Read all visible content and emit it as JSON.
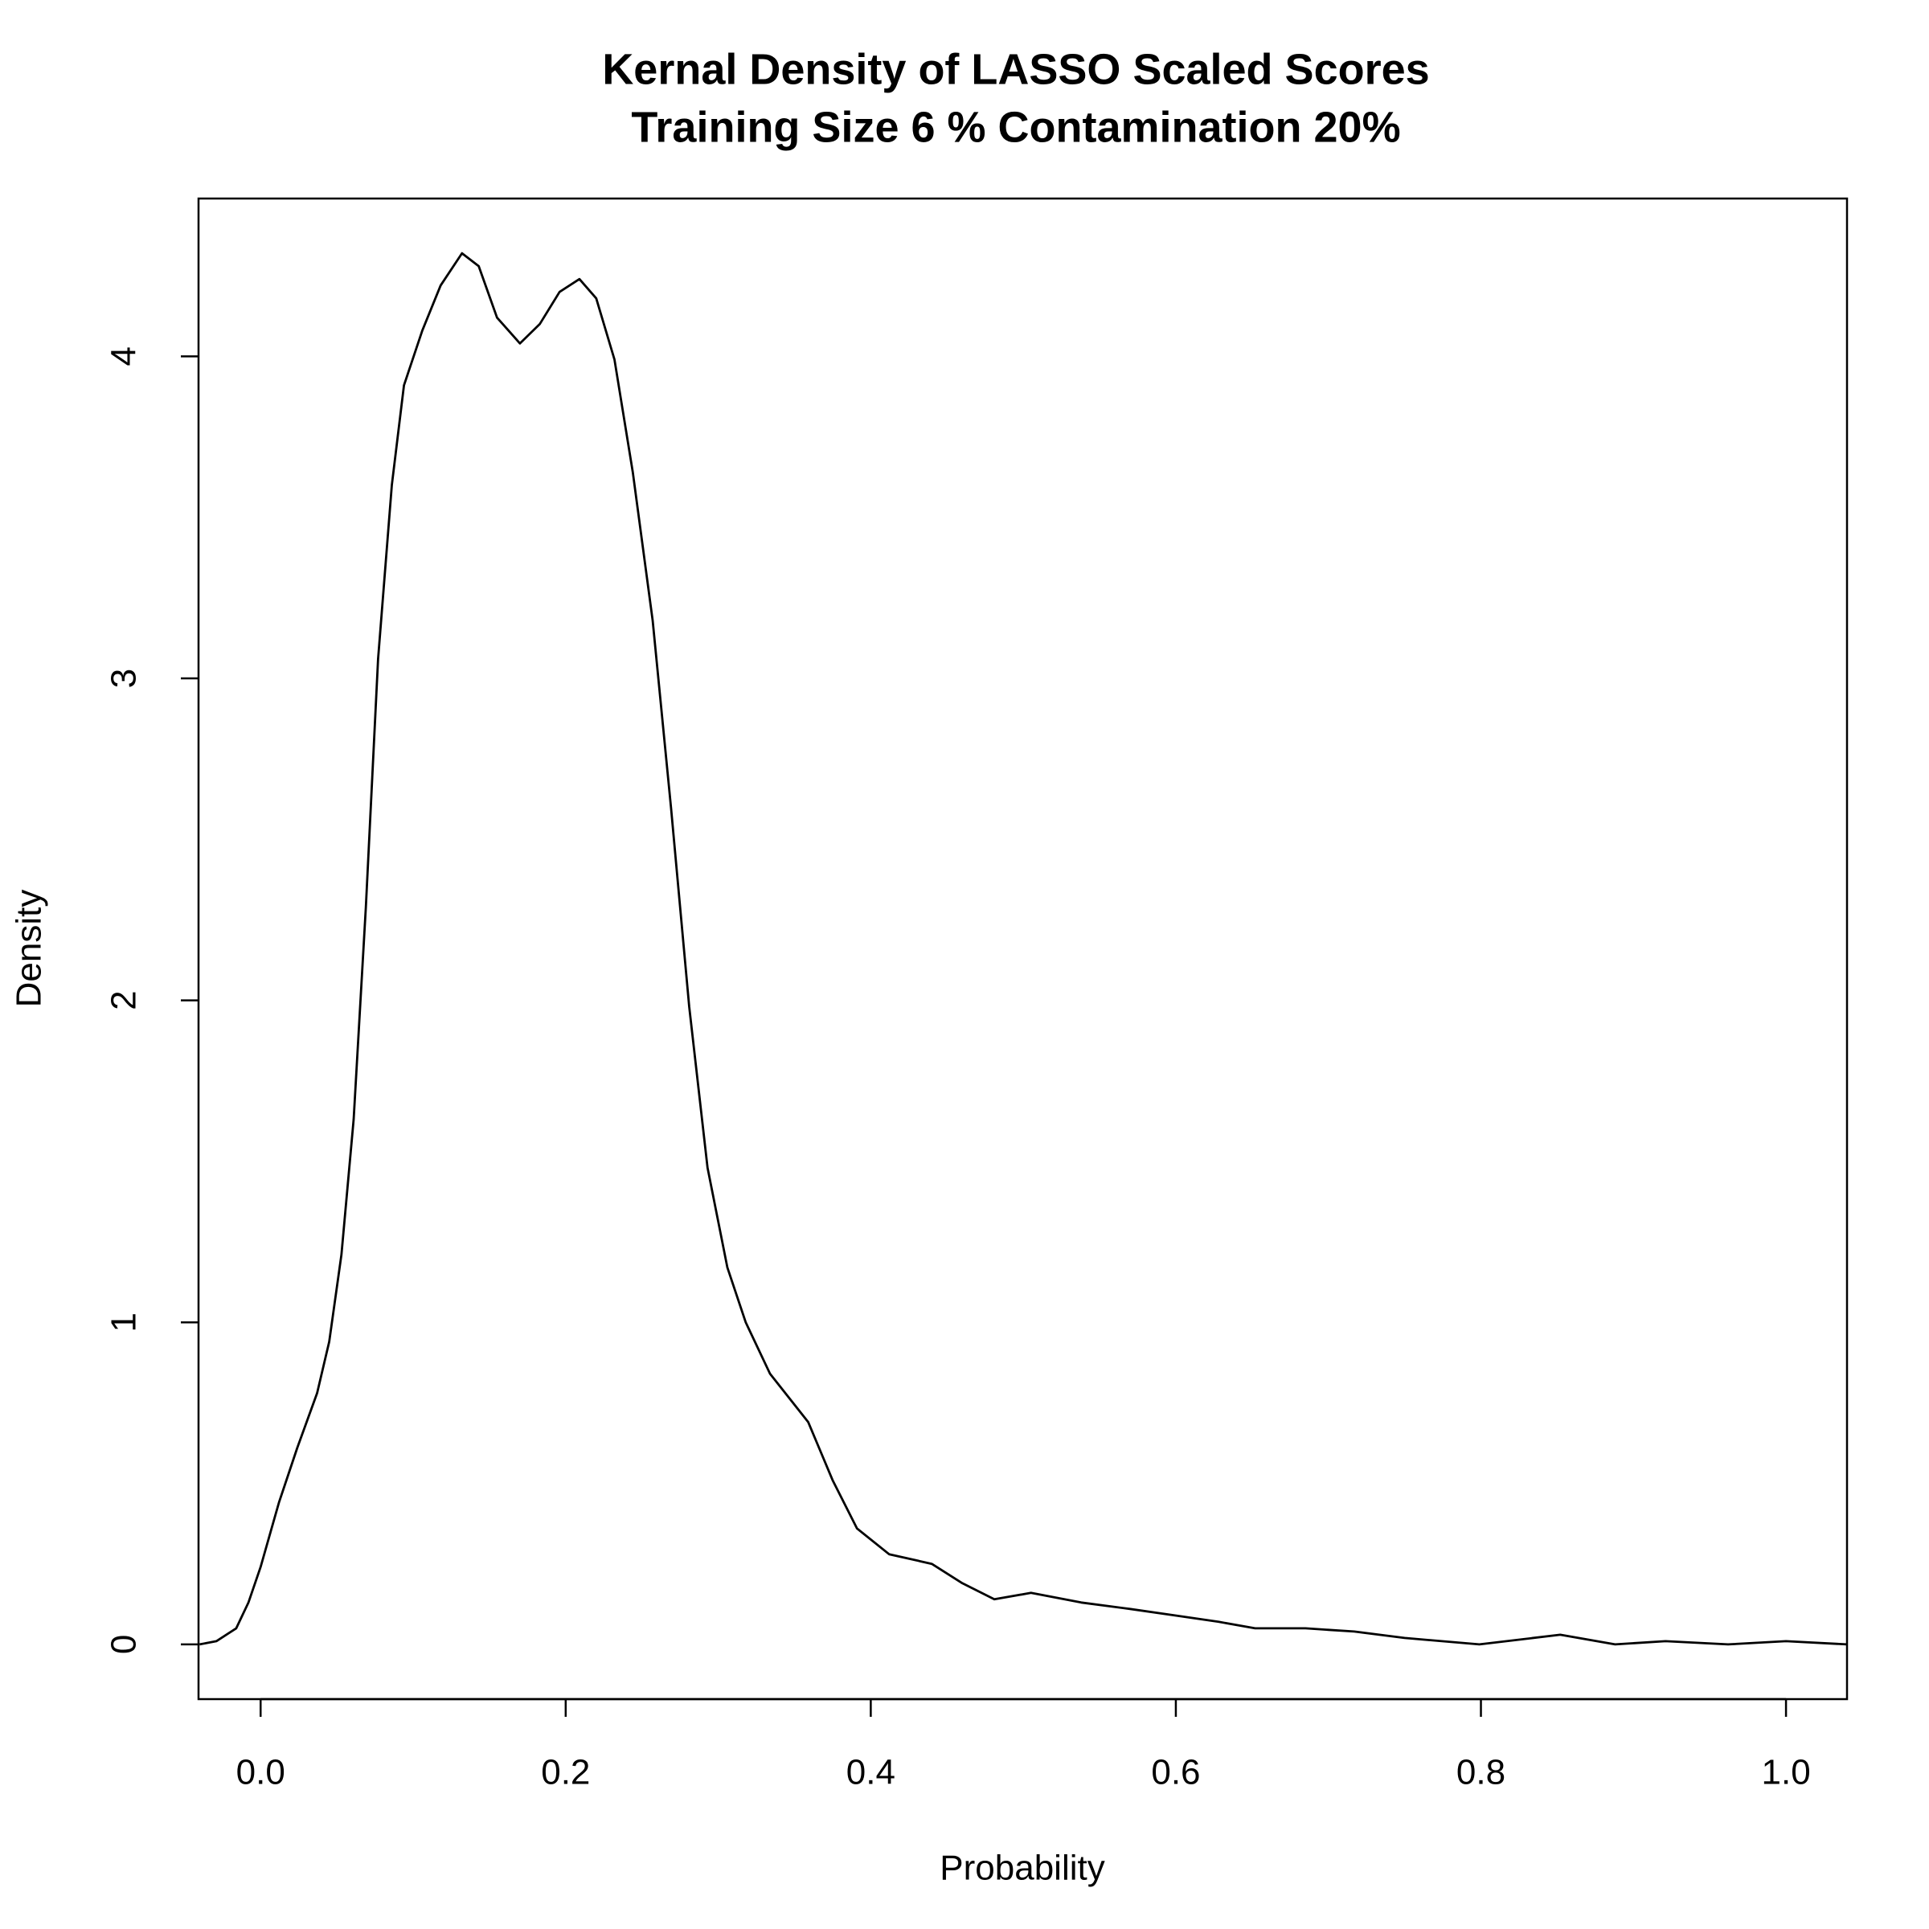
{
  "chart_data": {
    "type": "line",
    "title": "Kernal Density of LASSO Scaled Scores",
    "subtitle": "Training Size 6 % Contamination 20%",
    "x_label": "Probability",
    "y_label": "Density",
    "color": "#000000",
    "x": [
      -0.04,
      -0.029,
      -0.016,
      -0.008,
      0,
      0.012,
      0.024,
      0.037,
      0.045,
      0.053,
      0.061,
      0.069,
      0.077,
      0.086,
      0.094,
      0.106,
      0.118,
      0.132,
      0.143,
      0.155,
      0.17,
      0.183,
      0.196,
      0.209,
      0.22,
      0.232,
      0.244,
      0.257,
      0.269,
      0.281,
      0.293,
      0.306,
      0.318,
      0.334,
      0.359,
      0.375,
      0.391,
      0.412,
      0.44,
      0.46,
      0.481,
      0.505,
      0.538,
      0.57,
      0.599,
      0.628,
      0.652,
      0.685,
      0.717,
      0.75,
      0.799,
      0.852,
      0.888,
      0.921,
      0.962,
      1.0,
      1.04
    ],
    "values": [
      0,
      0.01,
      0.05,
      0.13,
      0.24,
      0.44,
      0.61,
      0.78,
      0.94,
      1.21,
      1.63,
      2.29,
      3.06,
      3.6,
      3.91,
      4.08,
      4.22,
      4.32,
      4.28,
      4.12,
      4.04,
      4.1,
      4.2,
      4.24,
      4.18,
      3.99,
      3.64,
      3.18,
      2.6,
      1.98,
      1.48,
      1.17,
      1.0,
      0.84,
      0.69,
      0.51,
      0.36,
      0.28,
      0.25,
      0.19,
      0.14,
      0.16,
      0.13,
      0.11,
      0.09,
      0.07,
      0.05,
      0.05,
      0.04,
      0.02,
      0,
      0.03,
      0,
      0.01,
      0,
      0.01,
      0
    ],
    "xlim": [
      -0.0407,
      1.04
    ],
    "ylim": [
      -0.17,
      4.49
    ],
    "xticks": [
      {
        "value": 0,
        "label": "0.0"
      },
      0.2,
      0.4,
      0.6,
      0.8,
      {
        "value": 1,
        "label": "1.0"
      }
    ],
    "yticks": [
      0,
      1,
      2,
      3,
      4
    ]
  }
}
